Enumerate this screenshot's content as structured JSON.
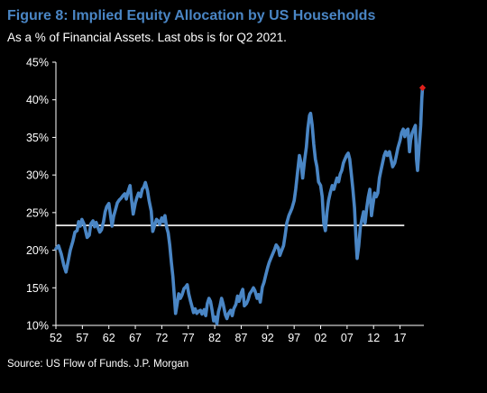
{
  "title": "Figure 8: Implied Equity Allocation by US Households",
  "subtitle": "As a % of Financial Assets. Last obs is for Q2 2021.",
  "source": "Source: US Flow of Funds. J.P. Morgan",
  "colors": {
    "background": "#000000",
    "title": "#4a86c5",
    "series": "#4a86c5",
    "reference_line": "#ffffff",
    "last_point": "#e0201b",
    "text": "#ffffff"
  },
  "chart_data": {
    "type": "line",
    "xlabel": "",
    "ylabel": "",
    "x_range": [
      1952,
      2021.5
    ],
    "x_ticks": [
      {
        "value": 1952,
        "label": "52"
      },
      {
        "value": 1957,
        "label": "57"
      },
      {
        "value": 1962,
        "label": "62"
      },
      {
        "value": 1967,
        "label": "67"
      },
      {
        "value": 1972,
        "label": "72"
      },
      {
        "value": 1977,
        "label": "77"
      },
      {
        "value": 1982,
        "label": "82"
      },
      {
        "value": 1987,
        "label": "87"
      },
      {
        "value": 1992,
        "label": "92"
      },
      {
        "value": 1997,
        "label": "97"
      },
      {
        "value": 2002,
        "label": "02"
      },
      {
        "value": 2007,
        "label": "07"
      },
      {
        "value": 2012,
        "label": "12"
      },
      {
        "value": 2017,
        "label": "17"
      }
    ],
    "ylim": [
      10,
      45
    ],
    "y_ticks": [
      {
        "value": 10,
        "label": "10%"
      },
      {
        "value": 15,
        "label": "15%"
      },
      {
        "value": 20,
        "label": "20%"
      },
      {
        "value": 25,
        "label": "25%"
      },
      {
        "value": 30,
        "label": "30%"
      },
      {
        "value": 35,
        "label": "35%"
      },
      {
        "value": 40,
        "label": "40%"
      },
      {
        "value": 45,
        "label": "45%"
      }
    ],
    "reference_line": {
      "y": 23.3,
      "x_start": 1952,
      "x_end": 2017.8
    },
    "last_point": {
      "x": 2021.25,
      "y": 41.6
    },
    "series": [
      {
        "values": [
          [
            1952.0,
            20.2
          ],
          [
            1952.5,
            20.6
          ],
          [
            1953.0,
            19.5
          ],
          [
            1953.5,
            18.0
          ],
          [
            1953.9,
            17.1
          ],
          [
            1954.3,
            18.5
          ],
          [
            1954.7,
            20.0
          ],
          [
            1955.2,
            21.2
          ],
          [
            1955.6,
            22.4
          ],
          [
            1956.0,
            22.6
          ],
          [
            1956.3,
            23.8
          ],
          [
            1956.6,
            23.2
          ],
          [
            1956.9,
            24.1
          ],
          [
            1957.3,
            23.5
          ],
          [
            1957.6,
            22.6
          ],
          [
            1957.9,
            21.7
          ],
          [
            1958.3,
            22.0
          ],
          [
            1958.6,
            23.5
          ],
          [
            1959.0,
            23.9
          ],
          [
            1959.3,
            23.1
          ],
          [
            1959.6,
            23.7
          ],
          [
            1960.0,
            22.9
          ],
          [
            1960.3,
            22.4
          ],
          [
            1960.6,
            22.7
          ],
          [
            1961.0,
            23.8
          ],
          [
            1961.3,
            25.1
          ],
          [
            1961.6,
            25.8
          ],
          [
            1962.0,
            26.2
          ],
          [
            1962.3,
            24.7
          ],
          [
            1962.6,
            23.2
          ],
          [
            1962.9,
            24.5
          ],
          [
            1963.3,
            25.5
          ],
          [
            1963.6,
            26.3
          ],
          [
            1964.0,
            26.7
          ],
          [
            1964.3,
            26.9
          ],
          [
            1964.6,
            27.2
          ],
          [
            1965.0,
            27.5
          ],
          [
            1965.3,
            26.8
          ],
          [
            1965.6,
            27.7
          ],
          [
            1966.0,
            28.6
          ],
          [
            1966.2,
            27.2
          ],
          [
            1966.6,
            24.8
          ],
          [
            1967.0,
            26.3
          ],
          [
            1967.3,
            27.0
          ],
          [
            1967.6,
            27.6
          ],
          [
            1968.0,
            27.1
          ],
          [
            1968.3,
            28.1
          ],
          [
            1968.6,
            28.4
          ],
          [
            1968.9,
            29.0
          ],
          [
            1969.3,
            27.9
          ],
          [
            1969.6,
            26.6
          ],
          [
            1970.0,
            25.2
          ],
          [
            1970.3,
            22.5
          ],
          [
            1970.6,
            23.2
          ],
          [
            1971.0,
            24.1
          ],
          [
            1971.3,
            23.9
          ],
          [
            1971.6,
            23.4
          ],
          [
            1972.0,
            24.3
          ],
          [
            1972.3,
            23.8
          ],
          [
            1972.6,
            24.6
          ],
          [
            1972.9,
            23.1
          ],
          [
            1973.2,
            22.3
          ],
          [
            1973.5,
            20.7
          ],
          [
            1973.8,
            18.4
          ],
          [
            1974.1,
            16.5
          ],
          [
            1974.4,
            13.6
          ],
          [
            1974.6,
            11.6
          ],
          [
            1974.9,
            12.8
          ],
          [
            1975.2,
            14.2
          ],
          [
            1975.5,
            13.6
          ],
          [
            1975.8,
            14.0
          ],
          [
            1976.2,
            14.9
          ],
          [
            1976.5,
            15.1
          ],
          [
            1976.8,
            15.4
          ],
          [
            1977.1,
            14.2
          ],
          [
            1977.4,
            13.3
          ],
          [
            1977.7,
            12.5
          ],
          [
            1978.0,
            11.7
          ],
          [
            1978.3,
            12.2
          ],
          [
            1978.6,
            11.6
          ],
          [
            1979.0,
            11.9
          ],
          [
            1979.3,
            12.0
          ],
          [
            1979.6,
            11.5
          ],
          [
            1980.0,
            12.1
          ],
          [
            1980.3,
            11.3
          ],
          [
            1980.6,
            12.9
          ],
          [
            1980.9,
            13.6
          ],
          [
            1981.2,
            13.2
          ],
          [
            1981.5,
            12.0
          ],
          [
            1981.8,
            10.6
          ],
          [
            1982.1,
            11.1
          ],
          [
            1982.4,
            10.2
          ],
          [
            1982.7,
            11.8
          ],
          [
            1983.0,
            12.6
          ],
          [
            1983.3,
            13.6
          ],
          [
            1983.6,
            12.8
          ],
          [
            1984.0,
            11.4
          ],
          [
            1984.3,
            10.9
          ],
          [
            1984.6,
            11.6
          ],
          [
            1985.0,
            12.0
          ],
          [
            1985.3,
            11.3
          ],
          [
            1985.6,
            12.2
          ],
          [
            1986.0,
            12.8
          ],
          [
            1986.3,
            13.9
          ],
          [
            1986.6,
            13.2
          ],
          [
            1987.0,
            14.3
          ],
          [
            1987.3,
            14.8
          ],
          [
            1987.6,
            12.6
          ],
          [
            1988.0,
            12.9
          ],
          [
            1988.3,
            13.4
          ],
          [
            1988.6,
            14.2
          ],
          [
            1989.0,
            14.6
          ],
          [
            1989.3,
            15.0
          ],
          [
            1989.6,
            14.6
          ],
          [
            1990.0,
            13.6
          ],
          [
            1990.3,
            14.1
          ],
          [
            1990.6,
            13.1
          ],
          [
            1991.0,
            15.1
          ],
          [
            1991.3,
            15.7
          ],
          [
            1991.6,
            16.6
          ],
          [
            1992.0,
            17.7
          ],
          [
            1992.3,
            18.4
          ],
          [
            1992.6,
            18.9
          ],
          [
            1993.0,
            19.6
          ],
          [
            1993.3,
            20.1
          ],
          [
            1993.6,
            20.7
          ],
          [
            1994.0,
            20.3
          ],
          [
            1994.3,
            19.3
          ],
          [
            1994.6,
            19.9
          ],
          [
            1995.0,
            20.6
          ],
          [
            1995.3,
            22.0
          ],
          [
            1995.6,
            23.6
          ],
          [
            1996.0,
            24.6
          ],
          [
            1996.3,
            25.1
          ],
          [
            1996.6,
            25.6
          ],
          [
            1997.0,
            26.6
          ],
          [
            1997.3,
            28.1
          ],
          [
            1997.6,
            30.1
          ],
          [
            1998.0,
            32.6
          ],
          [
            1998.3,
            31.6
          ],
          [
            1998.6,
            29.6
          ],
          [
            1999.0,
            32.1
          ],
          [
            1999.3,
            33.7
          ],
          [
            1999.6,
            36.2
          ],
          [
            1999.9,
            37.9
          ],
          [
            2000.1,
            38.2
          ],
          [
            2000.4,
            36.7
          ],
          [
            2000.7,
            34.1
          ],
          [
            2001.0,
            32.1
          ],
          [
            2001.3,
            31.1
          ],
          [
            2001.6,
            29.1
          ],
          [
            2002.0,
            28.6
          ],
          [
            2002.3,
            27.1
          ],
          [
            2002.6,
            23.6
          ],
          [
            2002.9,
            22.6
          ],
          [
            2003.2,
            25.1
          ],
          [
            2003.5,
            26.6
          ],
          [
            2003.8,
            27.6
          ],
          [
            2004.2,
            28.6
          ],
          [
            2004.5,
            28.1
          ],
          [
            2004.8,
            28.9
          ],
          [
            2005.1,
            29.6
          ],
          [
            2005.4,
            29.1
          ],
          [
            2005.7,
            30.1
          ],
          [
            2006.0,
            30.6
          ],
          [
            2006.3,
            31.6
          ],
          [
            2006.6,
            32.1
          ],
          [
            2006.9,
            32.6
          ],
          [
            2007.2,
            32.9
          ],
          [
            2007.5,
            32.1
          ],
          [
            2007.8,
            30.1
          ],
          [
            2008.1,
            28.1
          ],
          [
            2008.4,
            25.6
          ],
          [
            2008.7,
            21.1
          ],
          [
            2008.9,
            18.9
          ],
          [
            2009.2,
            20.6
          ],
          [
            2009.5,
            23.1
          ],
          [
            2009.8,
            24.1
          ],
          [
            2010.1,
            25.1
          ],
          [
            2010.4,
            23.6
          ],
          [
            2010.7,
            25.6
          ],
          [
            2011.0,
            27.1
          ],
          [
            2011.3,
            28.1
          ],
          [
            2011.6,
            24.6
          ],
          [
            2011.9,
            26.1
          ],
          [
            2012.2,
            27.6
          ],
          [
            2012.5,
            27.1
          ],
          [
            2012.8,
            27.6
          ],
          [
            2013.1,
            29.6
          ],
          [
            2013.4,
            30.6
          ],
          [
            2013.7,
            31.6
          ],
          [
            2014.0,
            32.6
          ],
          [
            2014.3,
            33.1
          ],
          [
            2014.6,
            32.6
          ],
          [
            2015.0,
            33.1
          ],
          [
            2015.3,
            32.1
          ],
          [
            2015.6,
            31.1
          ],
          [
            2016.0,
            31.6
          ],
          [
            2016.3,
            32.6
          ],
          [
            2016.6,
            33.6
          ],
          [
            2017.0,
            34.6
          ],
          [
            2017.3,
            35.6
          ],
          [
            2017.6,
            36.1
          ],
          [
            2017.9,
            35.1
          ],
          [
            2018.2,
            35.9
          ],
          [
            2018.5,
            36.1
          ],
          [
            2018.8,
            33.1
          ],
          [
            2019.0,
            34.6
          ],
          [
            2019.3,
            35.6
          ],
          [
            2019.6,
            36.1
          ],
          [
            2019.9,
            36.6
          ],
          [
            2020.1,
            32.1
          ],
          [
            2020.3,
            30.6
          ],
          [
            2020.6,
            33.6
          ],
          [
            2020.9,
            36.6
          ],
          [
            2021.1,
            40.1
          ],
          [
            2021.25,
            41.6
          ]
        ]
      }
    ]
  }
}
